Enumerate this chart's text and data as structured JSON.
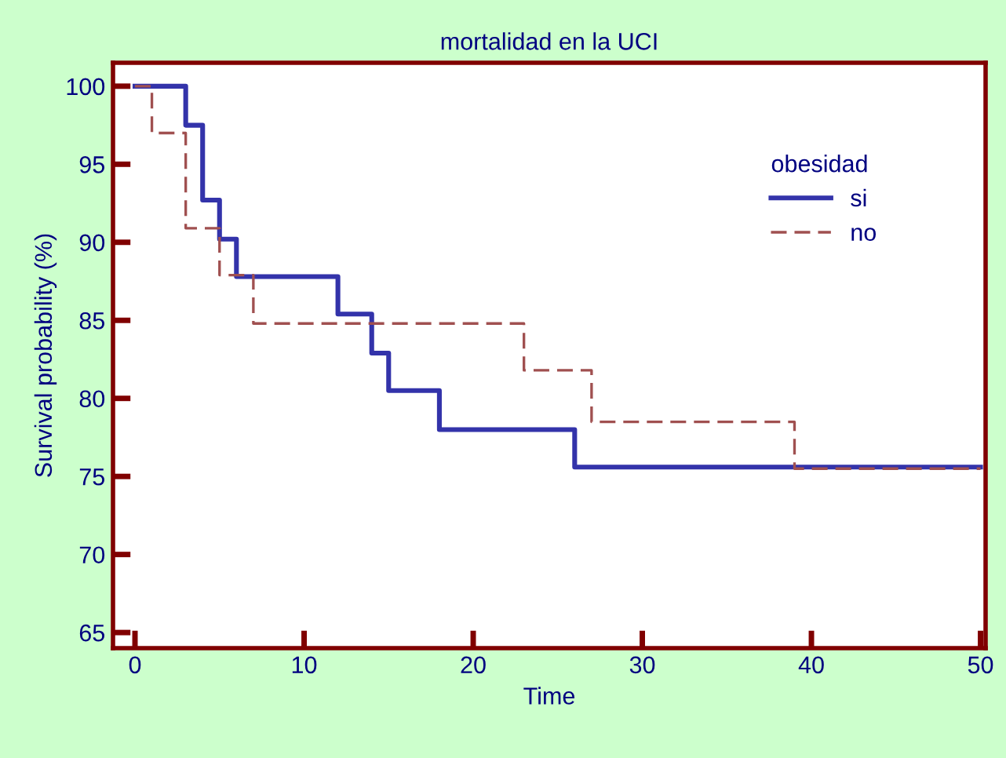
{
  "chart_data": {
    "type": "step",
    "title": "mortalidad en la UCI",
    "xlabel": "Time",
    "ylabel": "Survival probability (%)",
    "legend_title": "obesidad",
    "legend": "top right",
    "xlim": [
      -1.3,
      50.3
    ],
    "ylim": [
      64,
      101.5
    ],
    "xticks": [
      0,
      10,
      20,
      30,
      40,
      50
    ],
    "yticks": [
      65,
      70,
      75,
      80,
      85,
      90,
      95,
      100
    ],
    "grid": false,
    "series": [
      {
        "name": "si",
        "color": "#3333aa",
        "line_style": "solid",
        "x": [
          0,
          3,
          4,
          5,
          6,
          12,
          14,
          15,
          18,
          26,
          50
        ],
        "values": [
          100,
          97.5,
          92.7,
          90.2,
          87.8,
          85.4,
          82.9,
          80.5,
          78.0,
          75.6,
          75.6
        ]
      },
      {
        "name": "no",
        "color": "#a05050",
        "line_style": "dashed",
        "x": [
          0,
          1,
          3,
          5,
          7,
          23,
          27,
          39,
          50
        ],
        "values": [
          100,
          97.0,
          90.9,
          87.9,
          84.8,
          81.8,
          78.5,
          75.5,
          75.5
        ]
      }
    ]
  }
}
